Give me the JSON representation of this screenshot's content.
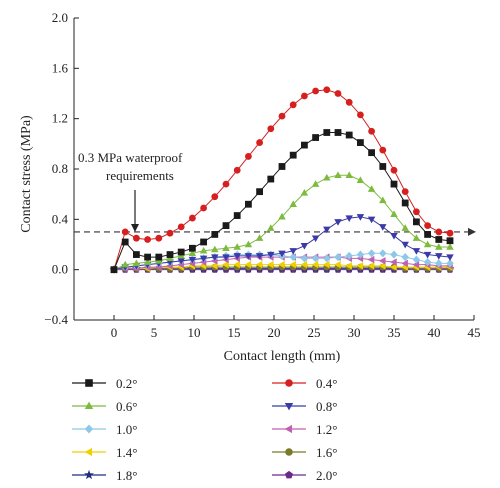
{
  "chart_data": {
    "type": "line",
    "xlabel": "Contact length (mm)",
    "ylabel": "Contact stress (MPa)",
    "xlim": [
      -5,
      45
    ],
    "ylim": [
      -0.4,
      2.0
    ],
    "xticks": [
      "0",
      "5",
      "10",
      "15",
      "20",
      "25",
      "30",
      "35",
      "40",
      "45"
    ],
    "yticks": [
      "−0.4",
      "0.0",
      "0.4",
      "0.8",
      "1.2",
      "1.6",
      "2.0"
    ],
    "grid": false,
    "legend_position": "below",
    "annotation": {
      "line1": "0.3 MPa waterproof",
      "line2": "requirements",
      "threshold": 0.3
    },
    "x": [
      0,
      1.4,
      2.8,
      4.2,
      5.6,
      7,
      8.4,
      9.8,
      11.2,
      12.6,
      14,
      15.4,
      16.8,
      18.2,
      19.6,
      21,
      22.4,
      23.8,
      25.2,
      26.6,
      28,
      29.4,
      30.8,
      32.2,
      33.6,
      35,
      36.4,
      37.8,
      39.2,
      40.6,
      42
    ],
    "series": [
      {
        "name": "0.2°",
        "color": "#1a1a1a",
        "marker": "square",
        "values": [
          0,
          0.22,
          0.12,
          0.1,
          0.1,
          0.12,
          0.14,
          0.17,
          0.22,
          0.28,
          0.35,
          0.43,
          0.52,
          0.62,
          0.72,
          0.82,
          0.91,
          0.99,
          1.05,
          1.09,
          1.09,
          1.07,
          1.01,
          0.93,
          0.82,
          0.68,
          0.53,
          0.38,
          0.28,
          0.24,
          0.23
        ]
      },
      {
        "name": "0.4°",
        "color": "#d62020",
        "marker": "circle",
        "values": [
          0,
          0.3,
          0.25,
          0.24,
          0.25,
          0.29,
          0.34,
          0.41,
          0.49,
          0.58,
          0.68,
          0.79,
          0.9,
          1.01,
          1.12,
          1.22,
          1.31,
          1.38,
          1.42,
          1.43,
          1.4,
          1.33,
          1.23,
          1.1,
          0.95,
          0.79,
          0.62,
          0.46,
          0.35,
          0.3,
          0.29
        ]
      },
      {
        "name": "0.6°",
        "color": "#7dbb3e",
        "marker": "triangle-up",
        "values": [
          0,
          0.04,
          0.05,
          0.06,
          0.07,
          0.09,
          0.11,
          0.13,
          0.15,
          0.16,
          0.17,
          0.18,
          0.2,
          0.25,
          0.33,
          0.42,
          0.52,
          0.61,
          0.68,
          0.73,
          0.75,
          0.75,
          0.71,
          0.64,
          0.55,
          0.44,
          0.33,
          0.25,
          0.2,
          0.18,
          0.18
        ]
      },
      {
        "name": "0.8°",
        "color": "#3a3aa8",
        "marker": "triangle-down",
        "values": [
          0,
          0.02,
          0.03,
          0.04,
          0.05,
          0.06,
          0.07,
          0.08,
          0.09,
          0.1,
          0.1,
          0.11,
          0.11,
          0.11,
          0.12,
          0.13,
          0.15,
          0.19,
          0.25,
          0.32,
          0.38,
          0.41,
          0.42,
          0.4,
          0.34,
          0.27,
          0.2,
          0.15,
          0.12,
          0.11,
          0.1
        ]
      },
      {
        "name": "1.0°",
        "color": "#8ec8e8",
        "marker": "diamond",
        "values": [
          0,
          0.02,
          0.03,
          0.04,
          0.05,
          0.06,
          0.07,
          0.08,
          0.09,
          0.1,
          0.11,
          0.12,
          0.12,
          0.12,
          0.12,
          0.11,
          0.1,
          0.09,
          0.09,
          0.09,
          0.1,
          0.11,
          0.12,
          0.13,
          0.13,
          0.12,
          0.1,
          0.08,
          0.06,
          0.05,
          0.05
        ]
      },
      {
        "name": "1.2°",
        "color": "#c060b0",
        "marker": "triangle-left",
        "values": [
          0,
          0.01,
          0.01,
          0.02,
          0.02,
          0.03,
          0.04,
          0.05,
          0.06,
          0.07,
          0.08,
          0.09,
          0.1,
          0.1,
          0.1,
          0.1,
          0.1,
          0.1,
          0.1,
          0.1,
          0.1,
          0.09,
          0.09,
          0.08,
          0.07,
          0.06,
          0.05,
          0.04,
          0.04,
          0.03,
          0.03
        ]
      },
      {
        "name": "1.4°",
        "color": "#f0d000",
        "marker": "triangle-left",
        "values": [
          0,
          0.01,
          0.01,
          0.01,
          0.02,
          0.02,
          0.02,
          0.03,
          0.03,
          0.03,
          0.04,
          0.04,
          0.04,
          0.04,
          0.04,
          0.04,
          0.04,
          0.04,
          0.04,
          0.04,
          0.04,
          0.03,
          0.03,
          0.03,
          0.03,
          0.02,
          0.02,
          0.02,
          0.02,
          0.02,
          0.02
        ]
      },
      {
        "name": "1.6°",
        "color": "#7a7a2a",
        "marker": "circle",
        "values": [
          0,
          0.01,
          0.01,
          0.01,
          0.01,
          0.01,
          0.01,
          0.02,
          0.02,
          0.02,
          0.02,
          0.02,
          0.02,
          0.02,
          0.02,
          0.02,
          0.02,
          0.02,
          0.02,
          0.02,
          0.02,
          0.02,
          0.02,
          0.02,
          0.02,
          0.02,
          0.01,
          0.01,
          0.01,
          0.01,
          0.01
        ]
      },
      {
        "name": "1.8°",
        "color": "#1f2f80",
        "marker": "star",
        "values": [
          0,
          0.01,
          0.01,
          0.01,
          0.01,
          0.01,
          0.01,
          0.01,
          0.01,
          0.01,
          0.01,
          0.01,
          0.01,
          0.01,
          0.01,
          0.01,
          0.01,
          0.01,
          0.01,
          0.01,
          0.01,
          0.01,
          0.01,
          0.01,
          0.01,
          0.01,
          0.01,
          0.01,
          0.01,
          0.01,
          0.01
        ]
      },
      {
        "name": "2.0°",
        "color": "#6a2a8a",
        "marker": "pentagon",
        "values": [
          0,
          0,
          0,
          0,
          0,
          0,
          0,
          0,
          0,
          0,
          0,
          0,
          0,
          0,
          0,
          0,
          0,
          0,
          0,
          0,
          0,
          0,
          0,
          0,
          0,
          0,
          0,
          0,
          0,
          0,
          0
        ]
      }
    ]
  }
}
